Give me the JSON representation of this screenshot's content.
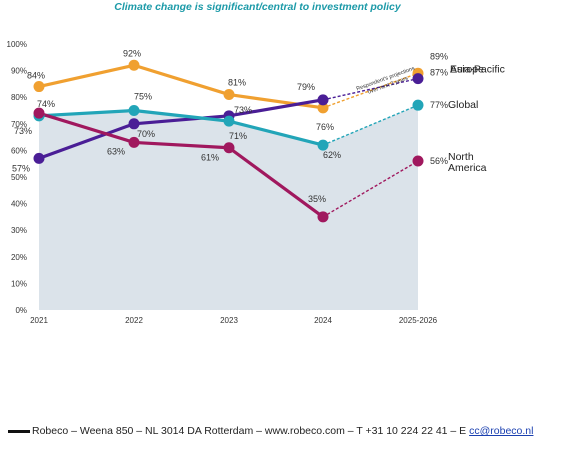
{
  "chart_data": {
    "type": "line",
    "title": "Climate change is significant/central to investment policy",
    "categories": [
      "2021",
      "2022",
      "2023",
      "2024",
      "2025-2026"
    ],
    "y_ticks": [
      "0%",
      "10%",
      "20%",
      "30%",
      "40%",
      "50%",
      "60%",
      "70%",
      "80%",
      "90%",
      "100%"
    ],
    "ylim": [
      0,
      100
    ],
    "grid": false,
    "projection_note": "Respondent's projections over next 2 years",
    "series": [
      {
        "key": "europe",
        "name": "Europe",
        "color": "#f0a030",
        "values": [
          84,
          92,
          81,
          76,
          89
        ],
        "labels": [
          "84%",
          "92%",
          "81%",
          "76%",
          "89%"
        ]
      },
      {
        "key": "asia_pacific",
        "name": "Asia-Pacific",
        "color": "#4a1e96",
        "values": [
          57,
          70,
          73,
          79,
          87
        ],
        "labels": [
          "57%",
          "70%",
          "73%",
          "79%",
          "87%"
        ]
      },
      {
        "key": "global",
        "name": "Global",
        "color": "#22a5b8",
        "values": [
          73,
          75,
          71,
          62,
          77
        ],
        "labels": [
          "73%",
          "75%",
          "71%",
          "62%",
          "77%"
        ]
      },
      {
        "key": "north_america",
        "name": "North America",
        "color": "#a0185e",
        "name_lines": [
          "North",
          "America"
        ],
        "values": [
          74,
          63,
          61,
          35,
          56
        ],
        "labels": [
          "74%",
          "63%",
          "61%",
          "35%",
          "56%"
        ]
      }
    ],
    "shaded_series": "global",
    "shade_color": "#dbe3ea"
  },
  "footer": {
    "text": "Robeco – Weena 850 – NL 3014 DA Rotterdam – www.robeco.com – T +31 10 224 22 41 – E ",
    "email": "cc@robeco.nl"
  }
}
